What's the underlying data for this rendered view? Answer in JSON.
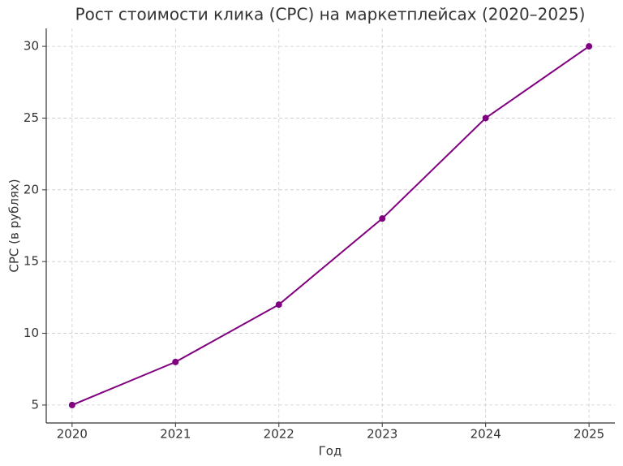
{
  "chart_data": {
    "type": "line",
    "title": "Рост стоимости клика (CPC) на маркетплейсах (2020–2025)",
    "xlabel": "Год",
    "ylabel": "CPC (в рублях)",
    "x": [
      2020,
      2021,
      2022,
      2023,
      2024,
      2025
    ],
    "series": [
      {
        "name": "CPC",
        "color": "#800080",
        "values": [
          5,
          8,
          12,
          18,
          25,
          30
        ]
      }
    ],
    "xlim": [
      2019.75,
      2025.25
    ],
    "ylim": [
      3.75,
      31.25
    ],
    "xticks": [
      2020,
      2021,
      2022,
      2023,
      2024,
      2025
    ],
    "yticks": [
      5,
      10,
      15,
      20,
      25,
      30
    ],
    "grid": true
  }
}
